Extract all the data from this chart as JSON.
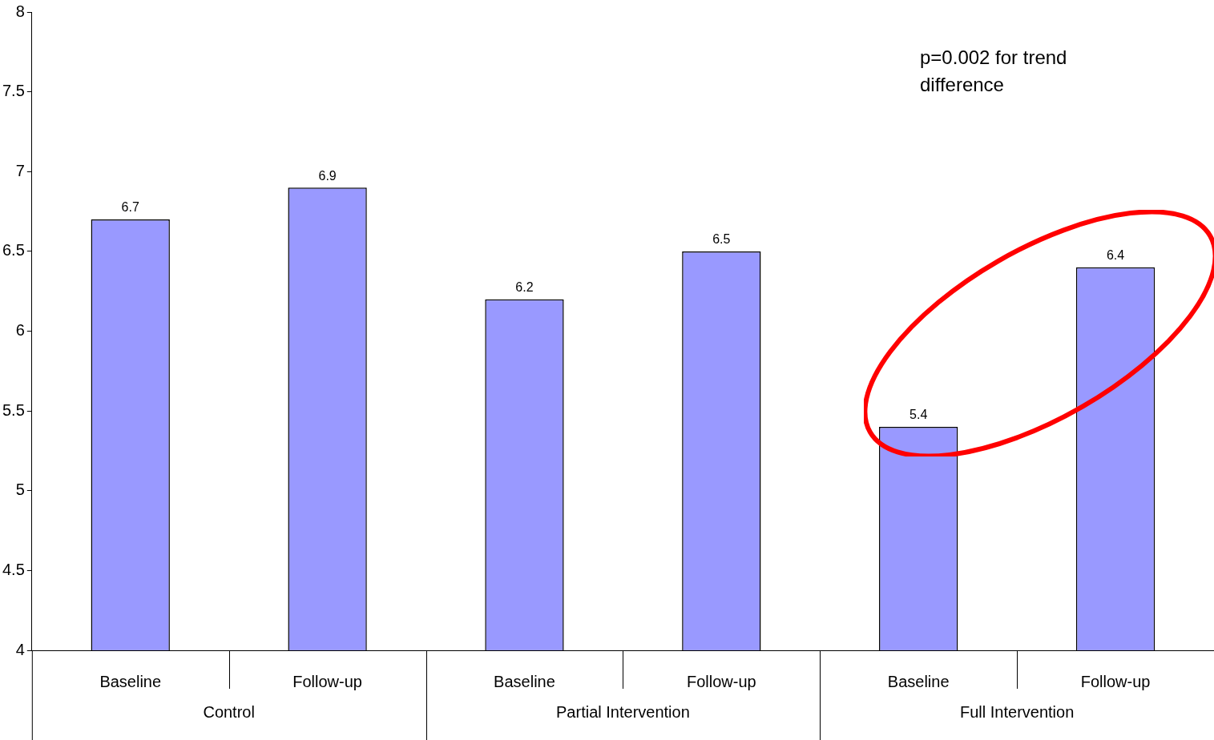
{
  "chart_data": {
    "type": "bar",
    "categories": [
      "Baseline",
      "Follow-up",
      "Baseline",
      "Follow-up",
      "Baseline",
      "Follow-up"
    ],
    "values": [
      6.7,
      6.9,
      6.2,
      6.5,
      5.4,
      6.4
    ],
    "color": "#9999ff",
    "ylim": [
      4,
      8
    ],
    "yticks": [
      4,
      4.5,
      5,
      5.5,
      6,
      6.5,
      7,
      7.5,
      8
    ],
    "grid": false,
    "legend": false,
    "data_labels": true,
    "annotations": [
      "p=0.002 for trend difference",
      "Control",
      "Partial Intervention",
      "Full Intervention"
    ]
  }
}
